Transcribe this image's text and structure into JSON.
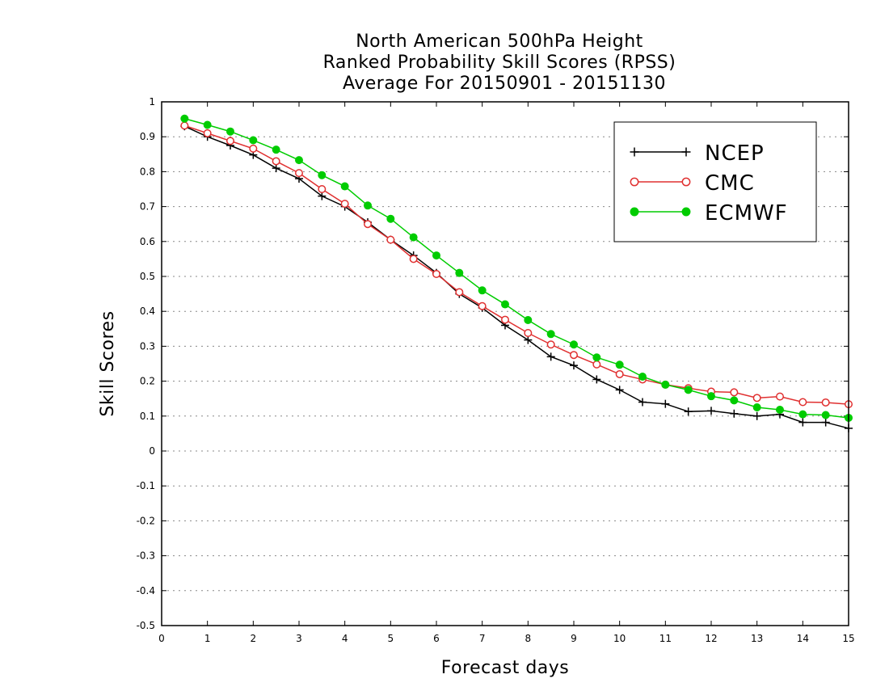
{
  "chart_data": {
    "type": "line",
    "title": [
      "North American 500hPa Height",
      "Ranked Probability Skill Scores (RPSS)",
      "Average For 20150901 - 20151130"
    ],
    "xlabel": "Forecast days",
    "ylabel": "Skill Scores",
    "xlim": [
      0,
      15
    ],
    "ylim": [
      -0.5,
      1
    ],
    "xticks": [
      "0",
      "1",
      "2",
      "3",
      "4",
      "5",
      "6",
      "7",
      "8",
      "9",
      "10",
      "11",
      "12",
      "13",
      "14",
      "15"
    ],
    "yticks": [
      "-0.5",
      "-0.4",
      "-0.3",
      "-0.2",
      "-0.1",
      "0",
      "0.1",
      "0.2",
      "0.3",
      "0.4",
      "0.5",
      "0.6",
      "0.7",
      "0.8",
      "0.9",
      "1"
    ],
    "grid": true,
    "legend_position": "top-right",
    "x": [
      0.5,
      1,
      1.5,
      2,
      2.5,
      3,
      3.5,
      4,
      4.5,
      5,
      5.5,
      6,
      6.5,
      7,
      7.5,
      8,
      8.5,
      9,
      9.5,
      10,
      10.5,
      11,
      11.5,
      12,
      12.5,
      13,
      13.5,
      14,
      14.5,
      15
    ],
    "series": [
      {
        "name": "NCEP",
        "color": "#000000",
        "marker": "plus",
        "values": [
          0.93,
          0.9,
          0.875,
          0.848,
          0.81,
          0.78,
          0.73,
          0.7,
          0.655,
          0.605,
          0.56,
          0.51,
          0.45,
          0.41,
          0.36,
          0.318,
          0.27,
          0.245,
          0.205,
          0.175,
          0.14,
          0.135,
          0.113,
          0.115,
          0.107,
          0.1,
          0.105,
          0.082,
          0.082,
          0.065
        ]
      },
      {
        "name": "CMC",
        "color": "#e03030",
        "marker": "open-circle",
        "values": [
          0.932,
          0.91,
          0.888,
          0.866,
          0.83,
          0.796,
          0.75,
          0.708,
          0.65,
          0.605,
          0.55,
          0.507,
          0.455,
          0.415,
          0.376,
          0.338,
          0.305,
          0.275,
          0.248,
          0.22,
          0.205,
          0.19,
          0.18,
          0.17,
          0.168,
          0.152,
          0.156,
          0.14,
          0.139,
          0.134
        ]
      },
      {
        "name": "ECMWF",
        "color": "#00cc00",
        "marker": "filled-circle",
        "values": [
          0.952,
          0.934,
          0.915,
          0.89,
          0.863,
          0.833,
          0.79,
          0.758,
          0.703,
          0.665,
          0.612,
          0.56,
          0.51,
          0.46,
          0.42,
          0.375,
          0.335,
          0.305,
          0.268,
          0.247,
          0.213,
          0.19,
          0.175,
          0.157,
          0.145,
          0.125,
          0.118,
          0.105,
          0.103,
          0.095
        ]
      }
    ]
  }
}
